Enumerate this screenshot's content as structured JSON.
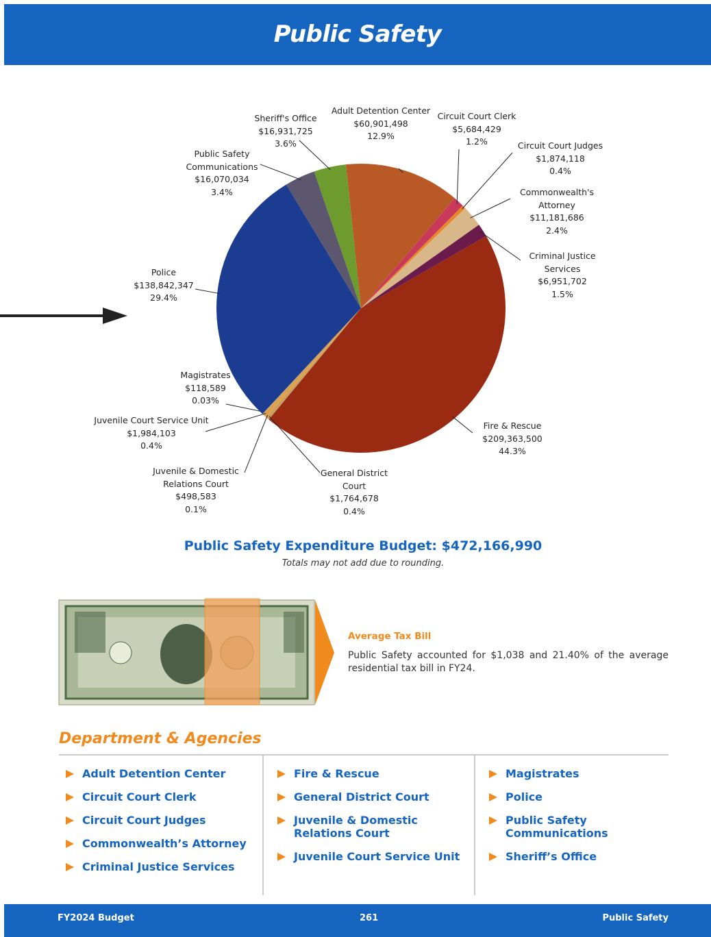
{
  "header": {
    "title": "Public Safety"
  },
  "chart_data": {
    "type": "pie",
    "categories": [
      "Adult Detention Center",
      "Circuit Court Clerk",
      "Circuit Court Judges",
      "Commonwealth's Attorney",
      "Criminal Justice Services",
      "Fire & Rescue",
      "General District Court",
      "Juvenile & Domestic Relations Court",
      "Juvenile Court Service Unit",
      "Magistrates",
      "Police",
      "Public Safety Communications",
      "Sheriff's Office"
    ],
    "values": [
      60901498,
      5684429,
      1874118,
      11181686,
      6951702,
      209363500,
      1764678,
      498583,
      1984103,
      118589,
      138842347,
      16070034,
      16931725
    ],
    "value_labels": [
      "$60,901,498",
      "$5,684,429",
      "$1,874,118",
      "$11,181,686",
      "$6,951,702",
      "$209,363,500",
      "$1,764,678",
      "$498,583",
      "$1,984,103",
      "$118,589",
      "$138,842,347",
      "$16,070,034",
      "$16,931,725"
    ],
    "percent_labels": [
      "12.9%",
      "1.2%",
      "0.4%",
      "2.4%",
      "1.5%",
      "44.3%",
      "0.4%",
      "0.1%",
      "0.4%",
      "0.03%",
      "29.4%",
      "3.4%",
      "3.6%"
    ],
    "colors": [
      "#b95a26",
      "#c93a5a",
      "#e8862a",
      "#d8b888",
      "#6b1b4b",
      "#9a2a12",
      "#caa060",
      "#e89a30",
      "#d8a050",
      "#c0c0c0",
      "#1c3c92",
      "#5c566e",
      "#6e9b2e"
    ]
  },
  "budget": {
    "title": "Public Safety Expenditure Budget: $472,166,990",
    "note": "Totals may not add due to rounding."
  },
  "tax_bill": {
    "title": "Average Tax Bill",
    "text": "Public Safety accounted for $1,038 and 21.40% of the average residential tax bill in FY24."
  },
  "departments": {
    "title": "Department & Agencies",
    "columns": [
      [
        "Adult Detention Center",
        "Circuit Court Clerk",
        "Circuit Court Judges",
        "Commonwealth’s Attorney",
        "Criminal Justice Services"
      ],
      [
        "Fire & Rescue",
        "General District Court",
        "Juvenile & Domestic Relations Court",
        "Juvenile Court Service Unit"
      ],
      [
        "Magistrates",
        "Police",
        "Public Safety Communications",
        "Sheriff’s Office"
      ]
    ]
  },
  "footer": {
    "left": "FY2024 Budget",
    "page": "261",
    "right": "Public Safety"
  }
}
